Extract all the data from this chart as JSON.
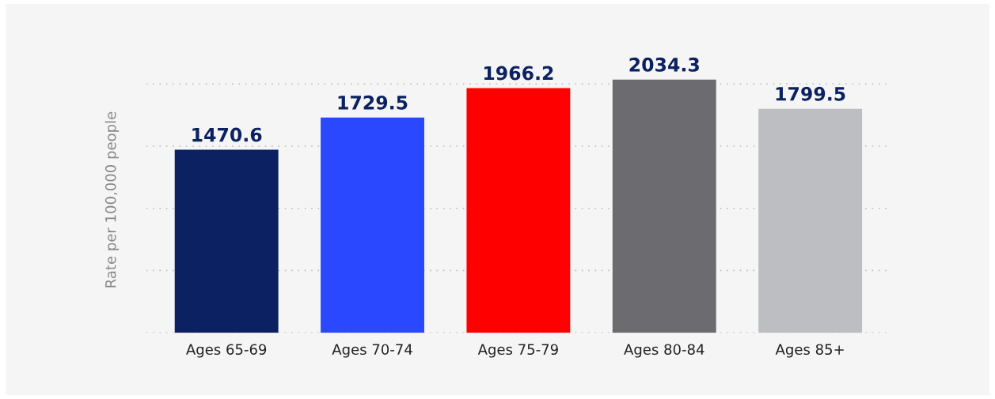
{
  "chart_data": {
    "type": "bar",
    "ylabel": "Rate per 100,000 people",
    "categories": [
      "Ages 65-69",
      "Ages 70-74",
      "Ages 75-79",
      "Ages 80-84",
      "Ages 85+"
    ],
    "values": [
      1470.6,
      1729.5,
      1966.2,
      2034.3,
      1799.5
    ],
    "colors": [
      "#0b2161",
      "#2a48ff",
      "#ff0000",
      "#6b6b70",
      "#bdbec1"
    ],
    "yticks": [
      {
        "value": 0,
        "label": null
      },
      {
        "value": 500,
        "label": null
      },
      {
        "value": 1000,
        "label": null
      },
      {
        "value": 1500,
        "label": null
      },
      {
        "value": 2000,
        "label": null
      }
    ],
    "tick_labels": "x",
    "grid": "y",
    "data_labels": true,
    "legend": false
  }
}
